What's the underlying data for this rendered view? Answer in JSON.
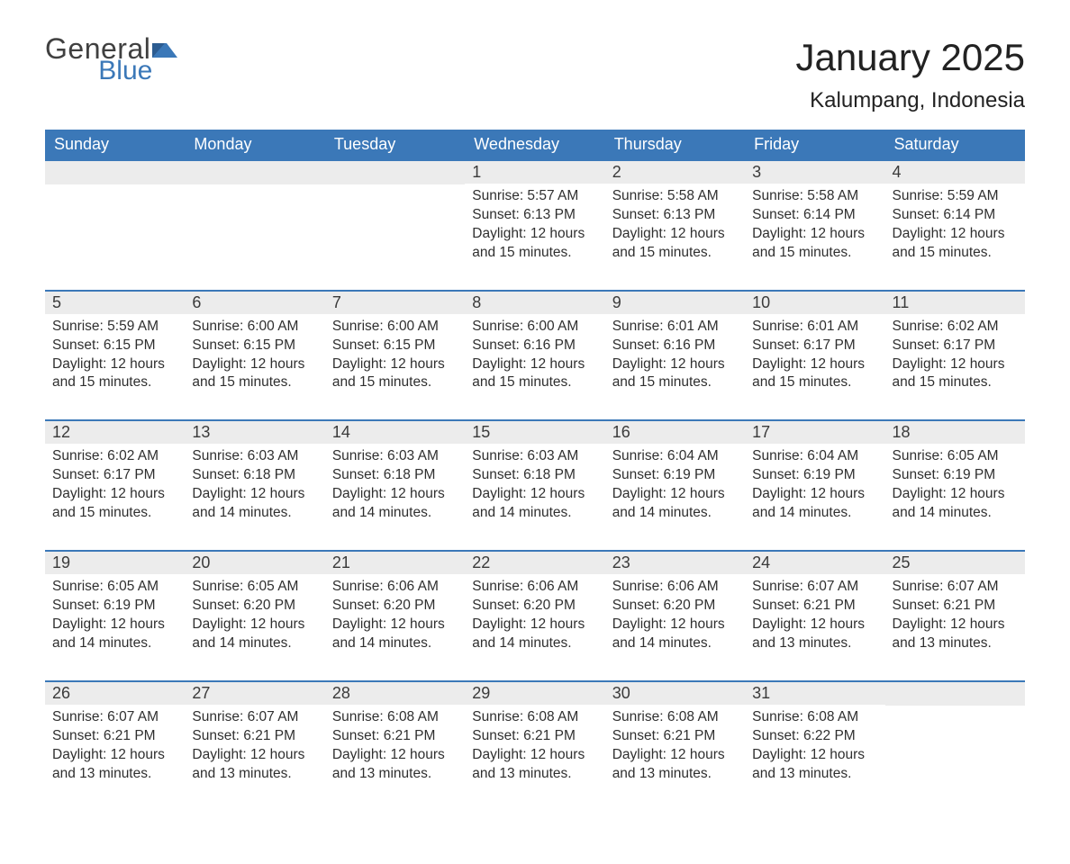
{
  "brand": {
    "word1": "General",
    "word2": "Blue"
  },
  "title": "January 2025",
  "location": "Kalumpang, Indonesia",
  "colors": {
    "header_bg": "#3b78b8",
    "row_separator": "#3b78b8",
    "day_band_bg": "#ececec",
    "page_bg": "#ffffff",
    "text": "#333333"
  },
  "day_headers": [
    "Sunday",
    "Monday",
    "Tuesday",
    "Wednesday",
    "Thursday",
    "Friday",
    "Saturday"
  ],
  "weeks": [
    [
      null,
      null,
      null,
      {
        "n": "1",
        "sr": "Sunrise: 5:57 AM",
        "ss": "Sunset: 6:13 PM",
        "d1": "Daylight: 12 hours",
        "d2": "and 15 minutes."
      },
      {
        "n": "2",
        "sr": "Sunrise: 5:58 AM",
        "ss": "Sunset: 6:13 PM",
        "d1": "Daylight: 12 hours",
        "d2": "and 15 minutes."
      },
      {
        "n": "3",
        "sr": "Sunrise: 5:58 AM",
        "ss": "Sunset: 6:14 PM",
        "d1": "Daylight: 12 hours",
        "d2": "and 15 minutes."
      },
      {
        "n": "4",
        "sr": "Sunrise: 5:59 AM",
        "ss": "Sunset: 6:14 PM",
        "d1": "Daylight: 12 hours",
        "d2": "and 15 minutes."
      }
    ],
    [
      {
        "n": "5",
        "sr": "Sunrise: 5:59 AM",
        "ss": "Sunset: 6:15 PM",
        "d1": "Daylight: 12 hours",
        "d2": "and 15 minutes."
      },
      {
        "n": "6",
        "sr": "Sunrise: 6:00 AM",
        "ss": "Sunset: 6:15 PM",
        "d1": "Daylight: 12 hours",
        "d2": "and 15 minutes."
      },
      {
        "n": "7",
        "sr": "Sunrise: 6:00 AM",
        "ss": "Sunset: 6:15 PM",
        "d1": "Daylight: 12 hours",
        "d2": "and 15 minutes."
      },
      {
        "n": "8",
        "sr": "Sunrise: 6:00 AM",
        "ss": "Sunset: 6:16 PM",
        "d1": "Daylight: 12 hours",
        "d2": "and 15 minutes."
      },
      {
        "n": "9",
        "sr": "Sunrise: 6:01 AM",
        "ss": "Sunset: 6:16 PM",
        "d1": "Daylight: 12 hours",
        "d2": "and 15 minutes."
      },
      {
        "n": "10",
        "sr": "Sunrise: 6:01 AM",
        "ss": "Sunset: 6:17 PM",
        "d1": "Daylight: 12 hours",
        "d2": "and 15 minutes."
      },
      {
        "n": "11",
        "sr": "Sunrise: 6:02 AM",
        "ss": "Sunset: 6:17 PM",
        "d1": "Daylight: 12 hours",
        "d2": "and 15 minutes."
      }
    ],
    [
      {
        "n": "12",
        "sr": "Sunrise: 6:02 AM",
        "ss": "Sunset: 6:17 PM",
        "d1": "Daylight: 12 hours",
        "d2": "and 15 minutes."
      },
      {
        "n": "13",
        "sr": "Sunrise: 6:03 AM",
        "ss": "Sunset: 6:18 PM",
        "d1": "Daylight: 12 hours",
        "d2": "and 14 minutes."
      },
      {
        "n": "14",
        "sr": "Sunrise: 6:03 AM",
        "ss": "Sunset: 6:18 PM",
        "d1": "Daylight: 12 hours",
        "d2": "and 14 minutes."
      },
      {
        "n": "15",
        "sr": "Sunrise: 6:03 AM",
        "ss": "Sunset: 6:18 PM",
        "d1": "Daylight: 12 hours",
        "d2": "and 14 minutes."
      },
      {
        "n": "16",
        "sr": "Sunrise: 6:04 AM",
        "ss": "Sunset: 6:19 PM",
        "d1": "Daylight: 12 hours",
        "d2": "and 14 minutes."
      },
      {
        "n": "17",
        "sr": "Sunrise: 6:04 AM",
        "ss": "Sunset: 6:19 PM",
        "d1": "Daylight: 12 hours",
        "d2": "and 14 minutes."
      },
      {
        "n": "18",
        "sr": "Sunrise: 6:05 AM",
        "ss": "Sunset: 6:19 PM",
        "d1": "Daylight: 12 hours",
        "d2": "and 14 minutes."
      }
    ],
    [
      {
        "n": "19",
        "sr": "Sunrise: 6:05 AM",
        "ss": "Sunset: 6:19 PM",
        "d1": "Daylight: 12 hours",
        "d2": "and 14 minutes."
      },
      {
        "n": "20",
        "sr": "Sunrise: 6:05 AM",
        "ss": "Sunset: 6:20 PM",
        "d1": "Daylight: 12 hours",
        "d2": "and 14 minutes."
      },
      {
        "n": "21",
        "sr": "Sunrise: 6:06 AM",
        "ss": "Sunset: 6:20 PM",
        "d1": "Daylight: 12 hours",
        "d2": "and 14 minutes."
      },
      {
        "n": "22",
        "sr": "Sunrise: 6:06 AM",
        "ss": "Sunset: 6:20 PM",
        "d1": "Daylight: 12 hours",
        "d2": "and 14 minutes."
      },
      {
        "n": "23",
        "sr": "Sunrise: 6:06 AM",
        "ss": "Sunset: 6:20 PM",
        "d1": "Daylight: 12 hours",
        "d2": "and 14 minutes."
      },
      {
        "n": "24",
        "sr": "Sunrise: 6:07 AM",
        "ss": "Sunset: 6:21 PM",
        "d1": "Daylight: 12 hours",
        "d2": "and 13 minutes."
      },
      {
        "n": "25",
        "sr": "Sunrise: 6:07 AM",
        "ss": "Sunset: 6:21 PM",
        "d1": "Daylight: 12 hours",
        "d2": "and 13 minutes."
      }
    ],
    [
      {
        "n": "26",
        "sr": "Sunrise: 6:07 AM",
        "ss": "Sunset: 6:21 PM",
        "d1": "Daylight: 12 hours",
        "d2": "and 13 minutes."
      },
      {
        "n": "27",
        "sr": "Sunrise: 6:07 AM",
        "ss": "Sunset: 6:21 PM",
        "d1": "Daylight: 12 hours",
        "d2": "and 13 minutes."
      },
      {
        "n": "28",
        "sr": "Sunrise: 6:08 AM",
        "ss": "Sunset: 6:21 PM",
        "d1": "Daylight: 12 hours",
        "d2": "and 13 minutes."
      },
      {
        "n": "29",
        "sr": "Sunrise: 6:08 AM",
        "ss": "Sunset: 6:21 PM",
        "d1": "Daylight: 12 hours",
        "d2": "and 13 minutes."
      },
      {
        "n": "30",
        "sr": "Sunrise: 6:08 AM",
        "ss": "Sunset: 6:21 PM",
        "d1": "Daylight: 12 hours",
        "d2": "and 13 minutes."
      },
      {
        "n": "31",
        "sr": "Sunrise: 6:08 AM",
        "ss": "Sunset: 6:22 PM",
        "d1": "Daylight: 12 hours",
        "d2": "and 13 minutes."
      },
      null
    ]
  ]
}
